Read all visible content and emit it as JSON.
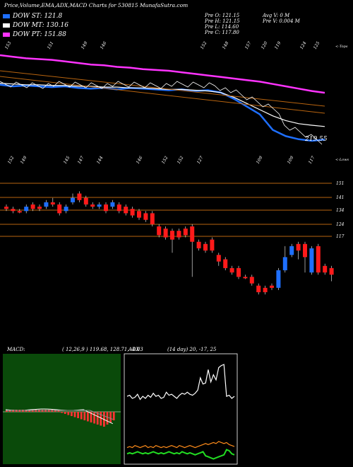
{
  "header": {
    "title": "Price,Volume,EMA,ADX,MACD Charts for 530815 MunafaSutra.com"
  },
  "legend": [
    {
      "label": "DOW ST: 121.8",
      "color": "#1e6fff"
    },
    {
      "label": "DOW MT: 130.16",
      "color": "#ffffff"
    },
    {
      "label": "DOW PT: 151.88",
      "color": "#ff33ff"
    }
  ],
  "info": {
    "prev_o": "Pre   O: 121.15",
    "prev_h": "Pre   H: 121.15",
    "prev_l": "Pre   L: 114.60",
    "prev_c": "Pre   C: 117.80",
    "avg_v": "Avg V: 0  M",
    "pre_v": "Pre   V: 0.004  M"
  },
  "top_panel": {
    "top_label": "<-Tops",
    "low_label": "<-Lows",
    "current_value": "219.55",
    "tops": [
      "153",
      "151",
      "149",
      "146",
      "152",
      "148",
      "157",
      "120",
      "119",
      "124",
      "125"
    ],
    "lows": [
      "152",
      "149",
      "145",
      "147",
      "144",
      "146",
      "152",
      "152",
      "127",
      "109",
      "109",
      "117"
    ]
  },
  "price_levels": [
    "151",
    "141",
    "134",
    "124",
    "117"
  ],
  "macd_panel": {
    "label": "MACD:",
    "values": "( 12,26,9 ) 119.68,  128.71,  -4.03"
  },
  "adx_panel": {
    "label": "ADX",
    "values": "(14  day) 20,  -17,  25"
  },
  "colors": {
    "up_candle": "#1e6fff",
    "down_candle": "#ff1a1a",
    "level_line": "#b8640f",
    "ema_short": "#1e6fff",
    "ema_mid": "#ffffff",
    "ema_long": "#ff33ff",
    "macd_bg": "#0a4a0a",
    "adx_line": "#ffffff",
    "adx_pos": "#ff8c1a",
    "adx_neg": "#22dd22"
  },
  "chart_data": [
    {
      "type": "line",
      "name": "price-ema-panel",
      "series": [
        {
          "name": "DOW ST",
          "values": [
            157,
            156,
            156.5,
            156,
            155.5,
            156,
            155,
            154.5,
            155,
            154,
            155,
            154.5,
            154,
            153.5,
            154,
            153,
            153.5,
            152,
            148,
            143,
            138,
            128,
            124,
            122,
            121,
            121.8
          ]
        },
        {
          "name": "DOW MT",
          "values": [
            158,
            157.5,
            157,
            157,
            156.5,
            156.5,
            156,
            156,
            155.5,
            155.5,
            155,
            155,
            154.5,
            154,
            154,
            153.5,
            153,
            152,
            149,
            145,
            141,
            137,
            134,
            132,
            131,
            130.16
          ]
        },
        {
          "name": "DOW PT",
          "values": [
            176,
            175,
            174,
            173.5,
            173,
            172,
            171,
            170,
            169.5,
            168.5,
            168,
            167,
            166.5,
            166,
            165,
            164,
            163,
            162,
            161,
            160,
            159,
            157.5,
            156,
            154.5,
            153,
            151.88
          ]
        }
      ]
    },
    {
      "type": "candlestick",
      "name": "candles",
      "ylim": [
        105,
        160
      ],
      "candles": [
        {
          "o": 149,
          "c": 148,
          "h": 150,
          "l": 147,
          "up": false
        },
        {
          "o": 148,
          "c": 147,
          "h": 149,
          "l": 146,
          "up": false
        },
        {
          "o": 147,
          "c": 147,
          "h": 148,
          "l": 146,
          "up": false
        },
        {
          "o": 147,
          "c": 149,
          "h": 150,
          "l": 146,
          "up": true
        },
        {
          "o": 150,
          "c": 148,
          "h": 151,
          "l": 147,
          "up": false
        },
        {
          "o": 149,
          "c": 148,
          "h": 150,
          "l": 147,
          "up": false
        },
        {
          "o": 149,
          "c": 151,
          "h": 152,
          "l": 148,
          "up": true
        },
        {
          "o": 151,
          "c": 150,
          "h": 153,
          "l": 149,
          "up": false
        },
        {
          "o": 150,
          "c": 146,
          "h": 151,
          "l": 145,
          "up": false
        },
        {
          "o": 147,
          "c": 149,
          "h": 150,
          "l": 146,
          "up": true
        },
        {
          "o": 151,
          "c": 153,
          "h": 155,
          "l": 150,
          "up": true
        },
        {
          "o": 155,
          "c": 152,
          "h": 156,
          "l": 151,
          "up": false
        },
        {
          "o": 153,
          "c": 150,
          "h": 154,
          "l": 149,
          "up": false
        },
        {
          "o": 150,
          "c": 149,
          "h": 151,
          "l": 148,
          "up": false
        },
        {
          "o": 149,
          "c": 150,
          "h": 151,
          "l": 148,
          "up": true
        },
        {
          "o": 150,
          "c": 147,
          "h": 151,
          "l": 146,
          "up": false
        },
        {
          "o": 149,
          "c": 151,
          "h": 152,
          "l": 148,
          "up": true
        },
        {
          "o": 150,
          "c": 147,
          "h": 151,
          "l": 146,
          "up": false
        },
        {
          "o": 149,
          "c": 146,
          "h": 150,
          "l": 145,
          "up": false
        },
        {
          "o": 148,
          "c": 145,
          "h": 149,
          "l": 144,
          "up": false
        },
        {
          "o": 147,
          "c": 144,
          "h": 148,
          "l": 143,
          "up": false
        },
        {
          "o": 146,
          "c": 143,
          "h": 147,
          "l": 142,
          "up": false
        },
        {
          "o": 146,
          "c": 141,
          "h": 147,
          "l": 140,
          "up": false
        },
        {
          "o": 140,
          "c": 136,
          "h": 141,
          "l": 135,
          "up": false
        },
        {
          "o": 139,
          "c": 135,
          "h": 140,
          "l": 134,
          "up": false
        },
        {
          "o": 138,
          "c": 134,
          "h": 139,
          "l": 128,
          "up": false
        },
        {
          "o": 138,
          "c": 135,
          "h": 139,
          "l": 134,
          "up": false
        },
        {
          "o": 139,
          "c": 136,
          "h": 140,
          "l": 135,
          "up": false
        },
        {
          "o": 140,
          "c": 133,
          "h": 141,
          "l": 117,
          "up": false
        },
        {
          "o": 133,
          "c": 130,
          "h": 134,
          "l": 129,
          "up": false
        },
        {
          "o": 132,
          "c": 129,
          "h": 133,
          "l": 128,
          "up": false
        },
        {
          "o": 134,
          "c": 129,
          "h": 135,
          "l": 128,
          "up": false
        },
        {
          "o": 127,
          "c": 124,
          "h": 128,
          "l": 122,
          "up": false
        },
        {
          "o": 125,
          "c": 121,
          "h": 126,
          "l": 120,
          "up": false
        },
        {
          "o": 121,
          "c": 119,
          "h": 122,
          "l": 118,
          "up": false
        },
        {
          "o": 121,
          "c": 117,
          "h": 122,
          "l": 116,
          "up": false
        },
        {
          "o": 117,
          "c": 117,
          "h": 118,
          "l": 116,
          "up": false
        },
        {
          "o": 117,
          "c": 114,
          "h": 118,
          "l": 113,
          "up": false
        },
        {
          "o": 113,
          "c": 110,
          "h": 114,
          "l": 109,
          "up": false
        },
        {
          "o": 112,
          "c": 110,
          "h": 113,
          "l": 109,
          "up": false
        },
        {
          "o": 113,
          "c": 112,
          "h": 114,
          "l": 111,
          "up": false
        },
        {
          "o": 112,
          "c": 120,
          "h": 121,
          "l": 111,
          "up": true
        },
        {
          "o": 120,
          "c": 126,
          "h": 131,
          "l": 119,
          "up": true
        },
        {
          "o": 127,
          "c": 131,
          "h": 132,
          "l": 126,
          "up": true
        },
        {
          "o": 132,
          "c": 129,
          "h": 133,
          "l": 125,
          "up": false
        },
        {
          "o": 132,
          "c": 126,
          "h": 133,
          "l": 119,
          "up": false
        },
        {
          "o": 119,
          "c": 130,
          "h": 131,
          "l": 118,
          "up": true
        },
        {
          "o": 131,
          "c": 119,
          "h": 132,
          "l": 118,
          "up": false
        },
        {
          "o": 122,
          "c": 119,
          "h": 123,
          "l": 118,
          "up": false
        },
        {
          "o": 121,
          "c": 118,
          "h": 122,
          "l": 115,
          "up": false
        }
      ]
    },
    {
      "type": "bar",
      "name": "macd-histogram",
      "ylim": [
        -30,
        30
      ],
      "values": [
        2,
        2,
        2,
        2,
        2,
        2,
        2,
        2,
        2,
        2,
        2,
        2,
        2,
        2,
        2,
        2,
        1,
        -1,
        -2,
        -3,
        -4,
        -5,
        -6,
        -7,
        -8,
        -9,
        -10,
        -11,
        -12,
        -13,
        -14,
        -12,
        -10,
        -8
      ]
    },
    {
      "type": "line",
      "name": "adx-lines",
      "ylim": [
        0,
        100
      ],
      "series": [
        {
          "name": "ADX",
          "values": [
            62,
            63,
            60,
            61,
            64,
            59,
            62,
            60,
            63,
            61,
            65,
            62,
            63,
            60,
            61,
            66,
            63,
            64,
            62,
            60,
            63,
            65,
            64,
            66,
            64,
            63,
            65,
            68,
            80,
            74,
            75,
            88,
            76,
            83,
            78,
            90,
            92,
            93,
            62,
            63,
            60,
            62
          ]
        },
        {
          "name": "+DI",
          "values": [
            12,
            13,
            12,
            14,
            13,
            12,
            13,
            14,
            12,
            13,
            12,
            14,
            13,
            12,
            13,
            12,
            13,
            14,
            13,
            12,
            14,
            13,
            12,
            13,
            14,
            13,
            12,
            13,
            14,
            15,
            16,
            15,
            16,
            17,
            16,
            18,
            17,
            16,
            17,
            15,
            14,
            13
          ]
        },
        {
          "name": "-DI",
          "values": [
            6,
            7,
            6,
            7,
            8,
            7,
            6,
            7,
            6,
            7,
            8,
            7,
            6,
            7,
            6,
            7,
            8,
            7,
            6,
            7,
            6,
            8,
            7,
            6,
            7,
            6,
            5,
            6,
            7,
            8,
            4,
            3,
            2,
            1,
            2,
            3,
            4,
            5,
            10,
            9,
            6,
            5
          ]
        }
      ]
    }
  ]
}
